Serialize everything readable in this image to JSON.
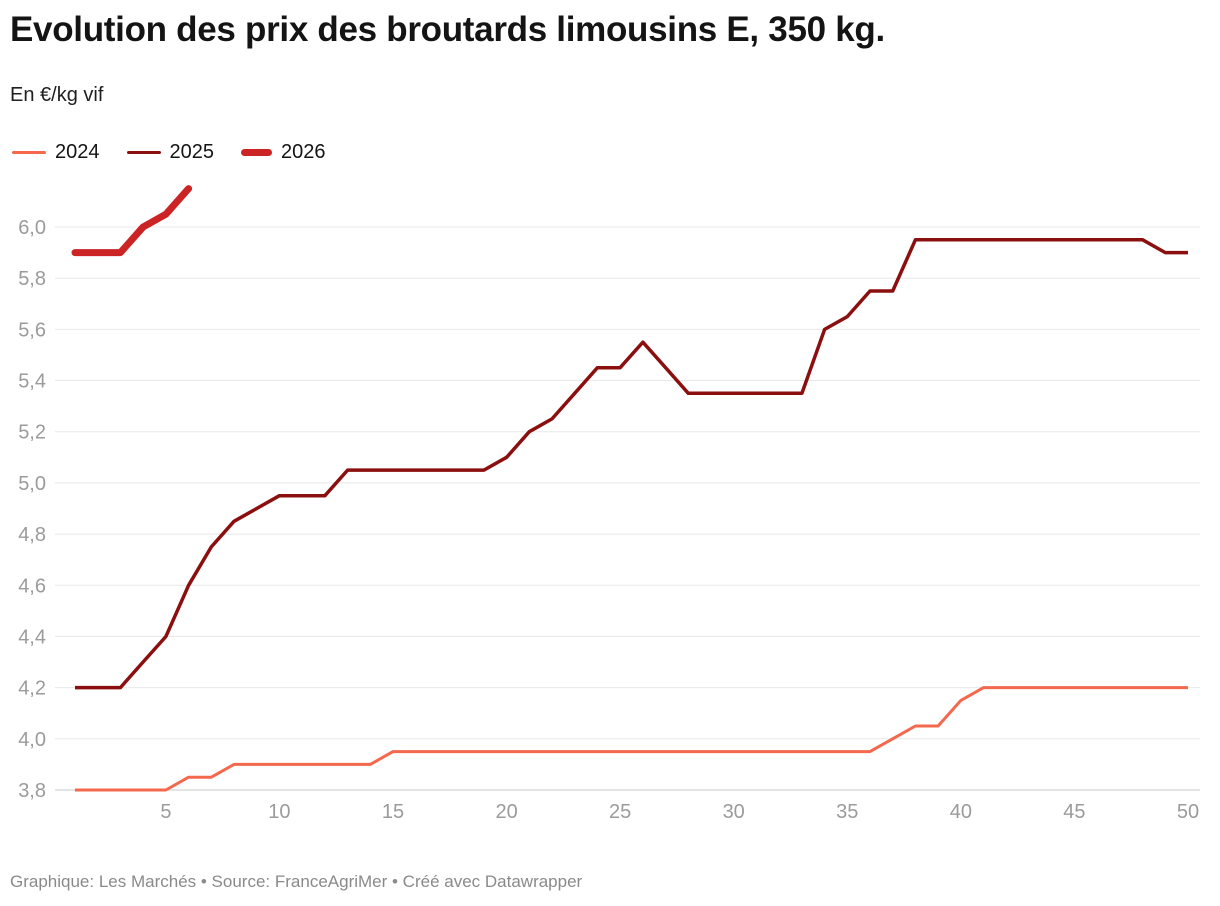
{
  "header": {
    "title": "Evolution des prix des broutards limousins E, 350 kg.",
    "subtitle": "En €/kg vif"
  },
  "legend": [
    {
      "label": "2024",
      "color": "#f4684e",
      "thick": false
    },
    {
      "label": "2025",
      "color": "#8b0f0f",
      "thick": false
    },
    {
      "label": "2026",
      "color": "#cc2324",
      "thick": true
    }
  ],
  "footer": {
    "text": "Graphique: Les Marchés • Source: FranceAgriMer • Créé avec Datawrapper"
  },
  "chart_data": {
    "type": "line",
    "title": "Evolution des prix des broutards limousins E, 350 kg.",
    "ylabel": "En €/kg vif",
    "xlabel": "",
    "x_unit": "week-number",
    "x_ticks": [
      5,
      10,
      15,
      20,
      25,
      30,
      35,
      40,
      45,
      50
    ],
    "ylim": [
      3.8,
      6.0
    ],
    "grid": "horizontal",
    "legend_position": "top",
    "y_ticks": [
      {
        "value": 3.8,
        "label": "3,8"
      },
      {
        "value": 4.0,
        "label": "4,0"
      },
      {
        "value": 4.2,
        "label": "4,2"
      },
      {
        "value": 4.4,
        "label": "4,4"
      },
      {
        "value": 4.6,
        "label": "4,6"
      },
      {
        "value": 4.8,
        "label": "4,8"
      },
      {
        "value": 5.0,
        "label": "5,0"
      },
      {
        "value": 5.2,
        "label": "5,2"
      },
      {
        "value": 5.4,
        "label": "5,4"
      },
      {
        "value": 5.6,
        "label": "5,6"
      },
      {
        "value": 5.8,
        "label": "5,8"
      },
      {
        "value": 6.0,
        "label": "6,0"
      }
    ],
    "series": [
      {
        "name": "2024",
        "color": "#f4684e",
        "width": 3,
        "x_start": 1,
        "values": [
          3.8,
          3.8,
          3.8,
          3.8,
          3.8,
          3.85,
          3.85,
          3.9,
          3.9,
          3.9,
          3.9,
          3.9,
          3.9,
          3.9,
          3.95,
          3.95,
          3.95,
          3.95,
          3.95,
          3.95,
          3.95,
          3.95,
          3.95,
          3.95,
          3.95,
          3.95,
          3.95,
          3.95,
          3.95,
          3.95,
          3.95,
          3.95,
          3.95,
          3.95,
          3.95,
          3.95,
          4.0,
          4.05,
          4.05,
          4.15,
          4.2,
          4.2,
          4.2,
          4.2,
          4.2,
          4.2,
          4.2,
          4.2,
          4.2,
          4.2
        ]
      },
      {
        "name": "2025",
        "color": "#8b0f0f",
        "width": 3.5,
        "x_start": 1,
        "values": [
          4.2,
          4.2,
          4.2,
          4.3,
          4.4,
          4.6,
          4.75,
          4.85,
          4.9,
          4.95,
          4.95,
          4.95,
          5.05,
          5.05,
          5.05,
          5.05,
          5.05,
          5.05,
          5.05,
          5.1,
          5.2,
          5.25,
          5.35,
          5.45,
          5.45,
          5.55,
          5.45,
          5.35,
          5.35,
          5.35,
          5.35,
          5.35,
          5.35,
          5.6,
          5.65,
          5.75,
          5.75,
          5.95,
          5.95,
          5.95,
          5.95,
          5.95,
          5.95,
          5.95,
          5.95,
          5.95,
          5.95,
          5.95,
          5.9,
          5.9
        ]
      },
      {
        "name": "2026",
        "color": "#cc2324",
        "width": 7,
        "x_start": 1,
        "values": [
          5.9,
          5.9,
          5.9,
          6.0,
          6.05,
          6.15
        ]
      }
    ]
  }
}
